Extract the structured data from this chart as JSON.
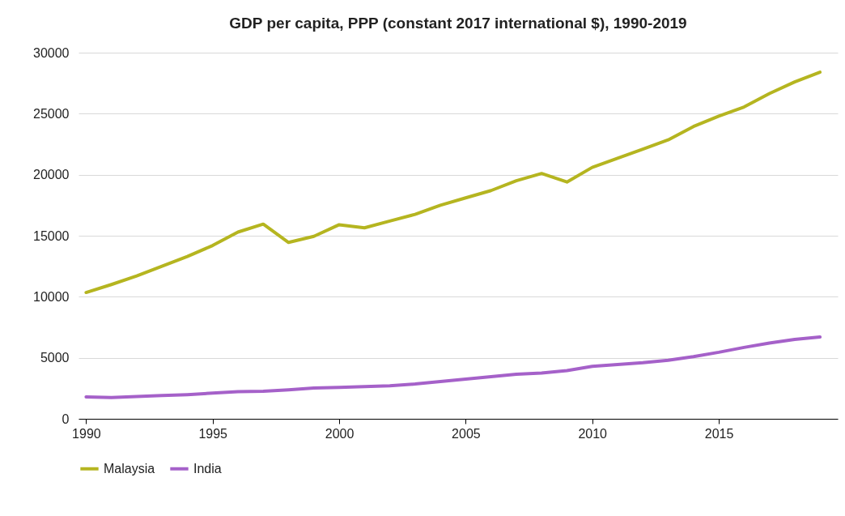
{
  "chart_data": {
    "type": "line",
    "title": "GDP per capita, PPP (constant 2017 international $), 1990-2019",
    "x": [
      1990,
      1991,
      1992,
      1993,
      1994,
      1995,
      1996,
      1997,
      1998,
      1999,
      2000,
      2001,
      2002,
      2003,
      2004,
      2005,
      2006,
      2007,
      2008,
      2009,
      2010,
      2011,
      2012,
      2013,
      2014,
      2015,
      2016,
      2017,
      2018,
      2019
    ],
    "series": [
      {
        "name": "Malaysia",
        "color": "#b5b520",
        "values": [
          10350,
          11000,
          11700,
          12500,
          13300,
          14200,
          15300,
          15950,
          14450,
          14950,
          15900,
          15650,
          16200,
          16750,
          17500,
          18100,
          18700,
          19500,
          20100,
          19400,
          20600,
          21350,
          22100,
          22850,
          23950,
          24800,
          25550,
          26650,
          27600,
          28400
        ]
      },
      {
        "name": "India",
        "color": "#a561c9",
        "values": [
          1800,
          1750,
          1820,
          1900,
          1980,
          2100,
          2220,
          2250,
          2370,
          2520,
          2570,
          2640,
          2700,
          2850,
          3050,
          3250,
          3450,
          3650,
          3750,
          3950,
          4300,
          4450,
          4600,
          4800,
          5100,
          5450,
          5850,
          6200,
          6500,
          6700
        ]
      }
    ],
    "xlim": [
      1989.7,
      2019.7
    ],
    "xticks": [
      1990,
      1995,
      2000,
      2005,
      2010,
      2015
    ],
    "ylim": [
      0,
      30000
    ],
    "yticks": [
      0,
      5000,
      10000,
      15000,
      20000,
      25000,
      30000
    ],
    "grid": "y",
    "legend": "bottom",
    "line_style": "solid",
    "marker": "none"
  }
}
